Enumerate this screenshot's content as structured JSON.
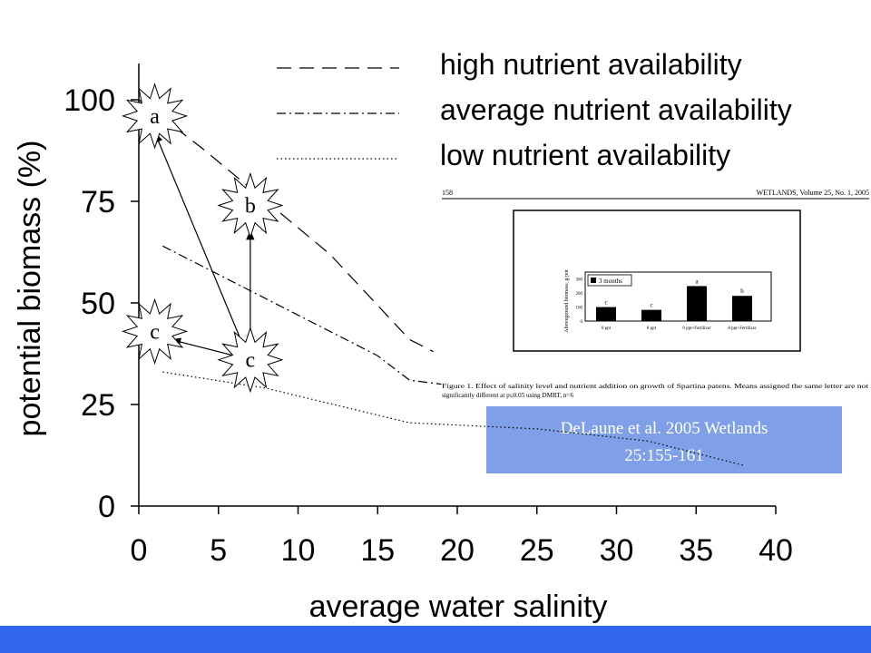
{
  "colors": {
    "background": "#ffffff",
    "footer_bar": "#3366ee",
    "citation_box": "#7f9fe8",
    "citation_text": "#ffffff",
    "line": "#000000"
  },
  "chart_data": {
    "type": "line",
    "xlabel": "average water salinity",
    "ylabel": "potential biomass (%)",
    "xlim": [
      0,
      40
    ],
    "ylim": [
      0,
      100
    ],
    "x_ticks": [
      "0",
      "5",
      "10",
      "15",
      "20",
      "25",
      "30",
      "35",
      "40"
    ],
    "y_ticks": [
      "0",
      "25",
      "50",
      "75",
      "100"
    ],
    "series": [
      {
        "name": "high nutrient availability",
        "style": "dashed",
        "x": [
          0,
          4,
          8,
          12,
          17,
          18.5
        ],
        "y": [
          100,
          88,
          75,
          62,
          41,
          38
        ]
      },
      {
        "name": "average nutrient availability",
        "style": "dash-dot",
        "x": [
          1.5,
          5,
          10,
          15,
          17,
          19
        ],
        "y": [
          64,
          57,
          47,
          37,
          31,
          30
        ]
      },
      {
        "name": "low nutrient availability",
        "style": "dotted",
        "x": [
          1.5,
          8,
          17,
          25,
          32,
          38
        ],
        "y": [
          33,
          29,
          20.5,
          19,
          16,
          10
        ]
      }
    ],
    "points": [
      {
        "label": "a",
        "x": 1,
        "y": 96
      },
      {
        "label": "b",
        "x": 7,
        "y": 74
      },
      {
        "label": "c",
        "x": 1,
        "y": 43
      },
      {
        "label": "c",
        "x": 7,
        "y": 36
      }
    ],
    "arrows": [
      {
        "from": [
          6.5,
          40
        ],
        "to": [
          1,
          92
        ]
      },
      {
        "from": [
          7,
          40
        ],
        "to": [
          7,
          68
        ]
      },
      {
        "from": [
          6,
          37
        ],
        "to": [
          2,
          41
        ]
      }
    ]
  },
  "inset": {
    "page_number": "158",
    "journal_header": "WETLANDS, Volume 25, No. 1, 2005",
    "chart_ylabel": "Aboveground biomass, g/pot",
    "legend": "3 months",
    "y_ticks": [
      "0",
      "100",
      "200",
      "300"
    ],
    "bars": [
      {
        "category": "0 ppt",
        "value": 100,
        "letter": "c"
      },
      {
        "category": "8 ppt",
        "value": 80,
        "letter": "c"
      },
      {
        "category": "0 ppt+Fertilizer",
        "value": 250,
        "letter": "a"
      },
      {
        "category": "8 ppt+Fertilizer",
        "value": 180,
        "letter": "b"
      }
    ],
    "caption_line1": "Figure 1.   Effect of salinity level and nutrient addition on growth of Spartina patens. Means assigned the same letter are not",
    "caption_line2": "significantly different at p≤0.05 using DMRT, n=6"
  },
  "citation": {
    "line1": "DeLaune et al. 2005 Wetlands",
    "line2": "25:155-161"
  }
}
